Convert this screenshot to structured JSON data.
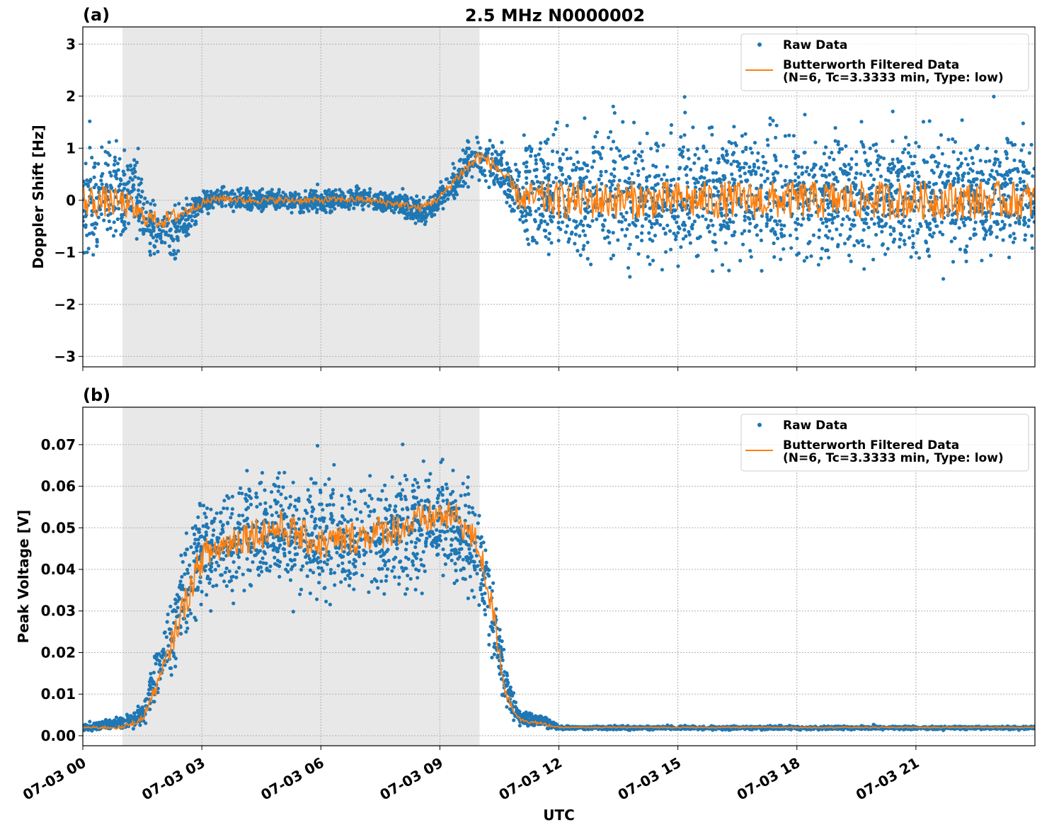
{
  "title": "2.5 MHz N0000002",
  "colors": {
    "raw": "#1f77b4",
    "filtered": "#ff7f0e",
    "shade": "#e8e8e8",
    "grid": "#b0b0b0"
  },
  "chart_data": [
    {
      "type": "scatter",
      "panel_label": "(a)",
      "ylabel": "Doppler Shift [Hz]",
      "xlabel": "",
      "xlim": [
        "07-03 00:00",
        "07-04 00:00"
      ],
      "ylim": [
        -3.2,
        3.33
      ],
      "grid": true,
      "xticks": [
        "07-03 00",
        "07-03 03",
        "07-03 06",
        "07-03 09",
        "07-03 12",
        "07-03 15",
        "07-03 18",
        "07-03 21"
      ],
      "yticks": [
        3,
        2,
        1,
        0,
        -1,
        -2,
        -3
      ],
      "ytick_labels": [
        "3",
        "2",
        "1",
        "0",
        "−1",
        "−2",
        "−3"
      ],
      "shaded_span": [
        "07-03 01:00",
        "07-03 10:00"
      ],
      "legend": {
        "placement": "top-right",
        "entries": [
          "Raw Data",
          "Butterworth Filtered Data",
          "(N=6, Tc=3.3333 min, Type: low)"
        ]
      },
      "series": [
        {
          "name": "Raw Data",
          "kind": "scatter-envelope",
          "points": [
            [
              "00:00",
              -1.5,
              1.5
            ],
            [
              "01:00",
              -1.2,
              1.3
            ],
            [
              "01:20",
              -0.9,
              1.3
            ],
            [
              "01:40",
              -1.3,
              0.2
            ],
            [
              "02:20",
              -1.3,
              0.1
            ],
            [
              "02:50",
              -0.6,
              0.2
            ],
            [
              "03:00",
              -0.4,
              0.3
            ],
            [
              "03:30",
              -0.25,
              0.35
            ],
            [
              "04:00",
              -0.3,
              0.3
            ],
            [
              "06:00",
              -0.3,
              0.25
            ],
            [
              "07:00",
              -0.25,
              0.3
            ],
            [
              "08:00",
              -0.35,
              0.2
            ],
            [
              "08:40",
              -0.6,
              0.1
            ],
            [
              "09:00",
              -0.3,
              0.4
            ],
            [
              "09:30",
              0.0,
              1.0
            ],
            [
              "09:50",
              0.2,
              1.5
            ],
            [
              "10:30",
              0.0,
              1.3
            ],
            [
              "10:50",
              -0.6,
              1.0
            ],
            [
              "11:10",
              -1.3,
              1.5
            ],
            [
              "12:00",
              -1.6,
              1.8
            ],
            [
              "24:00",
              -1.6,
              1.8
            ]
          ]
        },
        {
          "name": "Butterworth Filtered Data (N=6, Tc=3.3333 min, Type: low)",
          "kind": "line",
          "points": [
            [
              "00:00",
              0.0
            ],
            [
              "01:00",
              -0.05
            ],
            [
              "01:30",
              -0.3
            ],
            [
              "02:00",
              -0.4
            ],
            [
              "02:30",
              -0.25
            ],
            [
              "03:00",
              -0.05
            ],
            [
              "03:30",
              0.05
            ],
            [
              "04:00",
              0.0
            ],
            [
              "05:00",
              0.0
            ],
            [
              "06:00",
              0.0
            ],
            [
              "07:00",
              0.02
            ],
            [
              "08:00",
              -0.08
            ],
            [
              "08:30",
              -0.15
            ],
            [
              "09:00",
              0.05
            ],
            [
              "09:30",
              0.5
            ],
            [
              "10:00",
              0.85
            ],
            [
              "10:30",
              0.6
            ],
            [
              "11:00",
              0.05
            ],
            [
              "12:00",
              0.0
            ],
            [
              "24:00",
              0.0
            ]
          ]
        }
      ]
    },
    {
      "type": "scatter",
      "panel_label": "(b)",
      "ylabel": "Peak Voltage [V]",
      "xlabel": "UTC",
      "xlim": [
        "07-03 00:00",
        "07-04 00:00"
      ],
      "ylim": [
        -0.0024,
        0.079
      ],
      "grid": true,
      "xticks": [
        "07-03 00",
        "07-03 03",
        "07-03 06",
        "07-03 09",
        "07-03 12",
        "07-03 15",
        "07-03 18",
        "07-03 21"
      ],
      "yticks": [
        0.07,
        0.06,
        0.05,
        0.04,
        0.03,
        0.02,
        0.01,
        0.0
      ],
      "ytick_labels": [
        "0.07",
        "0.06",
        "0.05",
        "0.04",
        "0.03",
        "0.02",
        "0.01",
        "0.00"
      ],
      "shaded_span": [
        "07-03 01:00",
        "07-03 10:00"
      ],
      "legend": {
        "placement": "top-right",
        "entries": [
          "Raw Data",
          "Butterworth Filtered Data",
          "(N=6, Tc=3.3333 min, Type: low)"
        ]
      },
      "series": [
        {
          "name": "Raw Data",
          "kind": "scatter-envelope",
          "points": [
            [
              "00:00",
              0.001,
              0.003
            ],
            [
              "01:00",
              0.001,
              0.005
            ],
            [
              "01:30",
              0.001,
              0.008
            ],
            [
              "02:00",
              0.008,
              0.03
            ],
            [
              "02:30",
              0.015,
              0.05
            ],
            [
              "03:00",
              0.025,
              0.062
            ],
            [
              "04:00",
              0.028,
              0.068
            ],
            [
              "05:00",
              0.03,
              0.068
            ],
            [
              "06:00",
              0.028,
              0.066
            ],
            [
              "07:00",
              0.028,
              0.066
            ],
            [
              "08:00",
              0.03,
              0.068
            ],
            [
              "09:00",
              0.035,
              0.07
            ],
            [
              "09:40",
              0.03,
              0.065
            ],
            [
              "10:00",
              0.025,
              0.06
            ],
            [
              "10:20",
              0.015,
              0.045
            ],
            [
              "10:40",
              0.004,
              0.02
            ],
            [
              "11:00",
              0.002,
              0.007
            ],
            [
              "11:40",
              0.0015,
              0.005
            ],
            [
              "12:00",
              0.0013,
              0.0025
            ],
            [
              "24:00",
              0.0013,
              0.0025
            ]
          ]
        },
        {
          "name": "Butterworth Filtered Data (N=6, Tc=3.3333 min, Type: low)",
          "kind": "line",
          "points": [
            [
              "00:00",
              0.002
            ],
            [
              "01:00",
              0.002
            ],
            [
              "01:30",
              0.004
            ],
            [
              "02:00",
              0.015
            ],
            [
              "02:30",
              0.03
            ],
            [
              "03:00",
              0.043
            ],
            [
              "04:00",
              0.048
            ],
            [
              "05:00",
              0.05
            ],
            [
              "06:00",
              0.046
            ],
            [
              "07:00",
              0.048
            ],
            [
              "08:00",
              0.05
            ],
            [
              "09:00",
              0.053
            ],
            [
              "09:30",
              0.052
            ],
            [
              "10:00",
              0.045
            ],
            [
              "10:20",
              0.03
            ],
            [
              "10:40",
              0.01
            ],
            [
              "11:00",
              0.004
            ],
            [
              "12:00",
              0.002
            ],
            [
              "24:00",
              0.002
            ]
          ]
        }
      ]
    }
  ]
}
